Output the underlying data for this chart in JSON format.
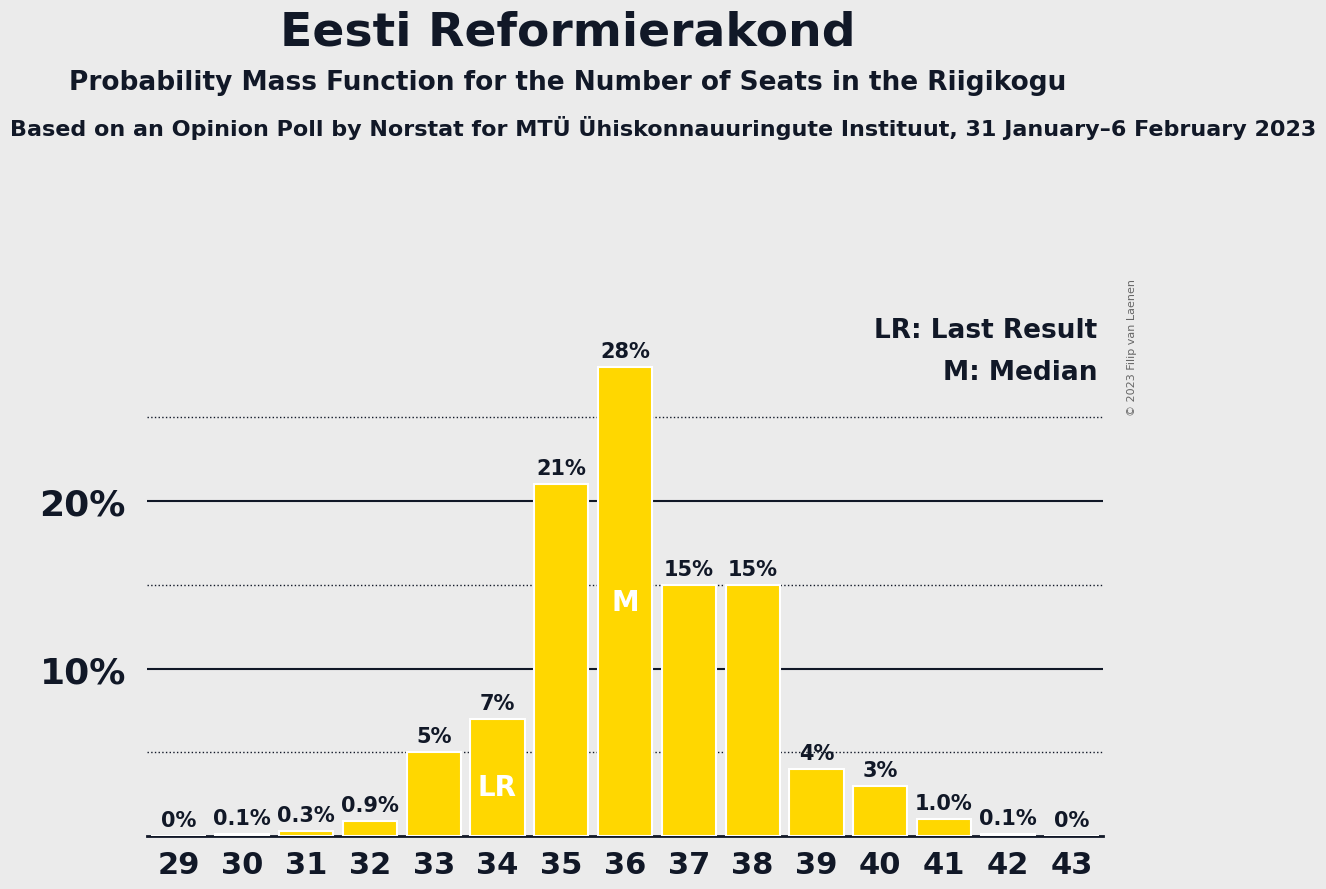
{
  "title": "Eesti Reformierakond",
  "subtitle1": "Probability Mass Function for the Number of Seats in the Riigikogu",
  "subtitle2": "Based on an Opinion Poll by Norstat for MTÜ Ühiskonnauuringute Instituut, 31 January–6 February 2023",
  "copyright": "© 2023 Filip van Laenen",
  "seats": [
    29,
    30,
    31,
    32,
    33,
    34,
    35,
    36,
    37,
    38,
    39,
    40,
    41,
    42,
    43
  ],
  "probabilities": [
    0.0,
    0.1,
    0.3,
    0.9,
    5.0,
    7.0,
    21.0,
    28.0,
    15.0,
    15.0,
    4.0,
    3.0,
    1.0,
    0.1,
    0.0
  ],
  "bar_color": "#FFD700",
  "bar_edge_color": "#FFFFFF",
  "background_color": "#EBEBEB",
  "text_color": "#111827",
  "label_texts": [
    "0%",
    "0.1%",
    "0.3%",
    "0.9%",
    "5%",
    "7%",
    "21%",
    "28%",
    "15%",
    "15%",
    "4%",
    "3%",
    "1.0%",
    "0.1%",
    "0%"
  ],
  "lr_seat": 34,
  "median_seat": 36,
  "lr_label": "LR",
  "median_label": "M",
  "legend_lr": "LR: Last Result",
  "legend_m": "M: Median",
  "ylim": [
    0,
    32
  ],
  "solid_yticks": [
    10,
    20
  ],
  "dotted_yticks": [
    5,
    15,
    25
  ],
  "title_fontsize": 34,
  "subtitle1_fontsize": 19,
  "subtitle2_fontsize": 16,
  "axis_tick_fontsize": 22,
  "bar_label_fontsize": 15,
  "bar_label_white_fontsize": 20,
  "legend_fontsize": 19,
  "ytick_fontsize": 26
}
